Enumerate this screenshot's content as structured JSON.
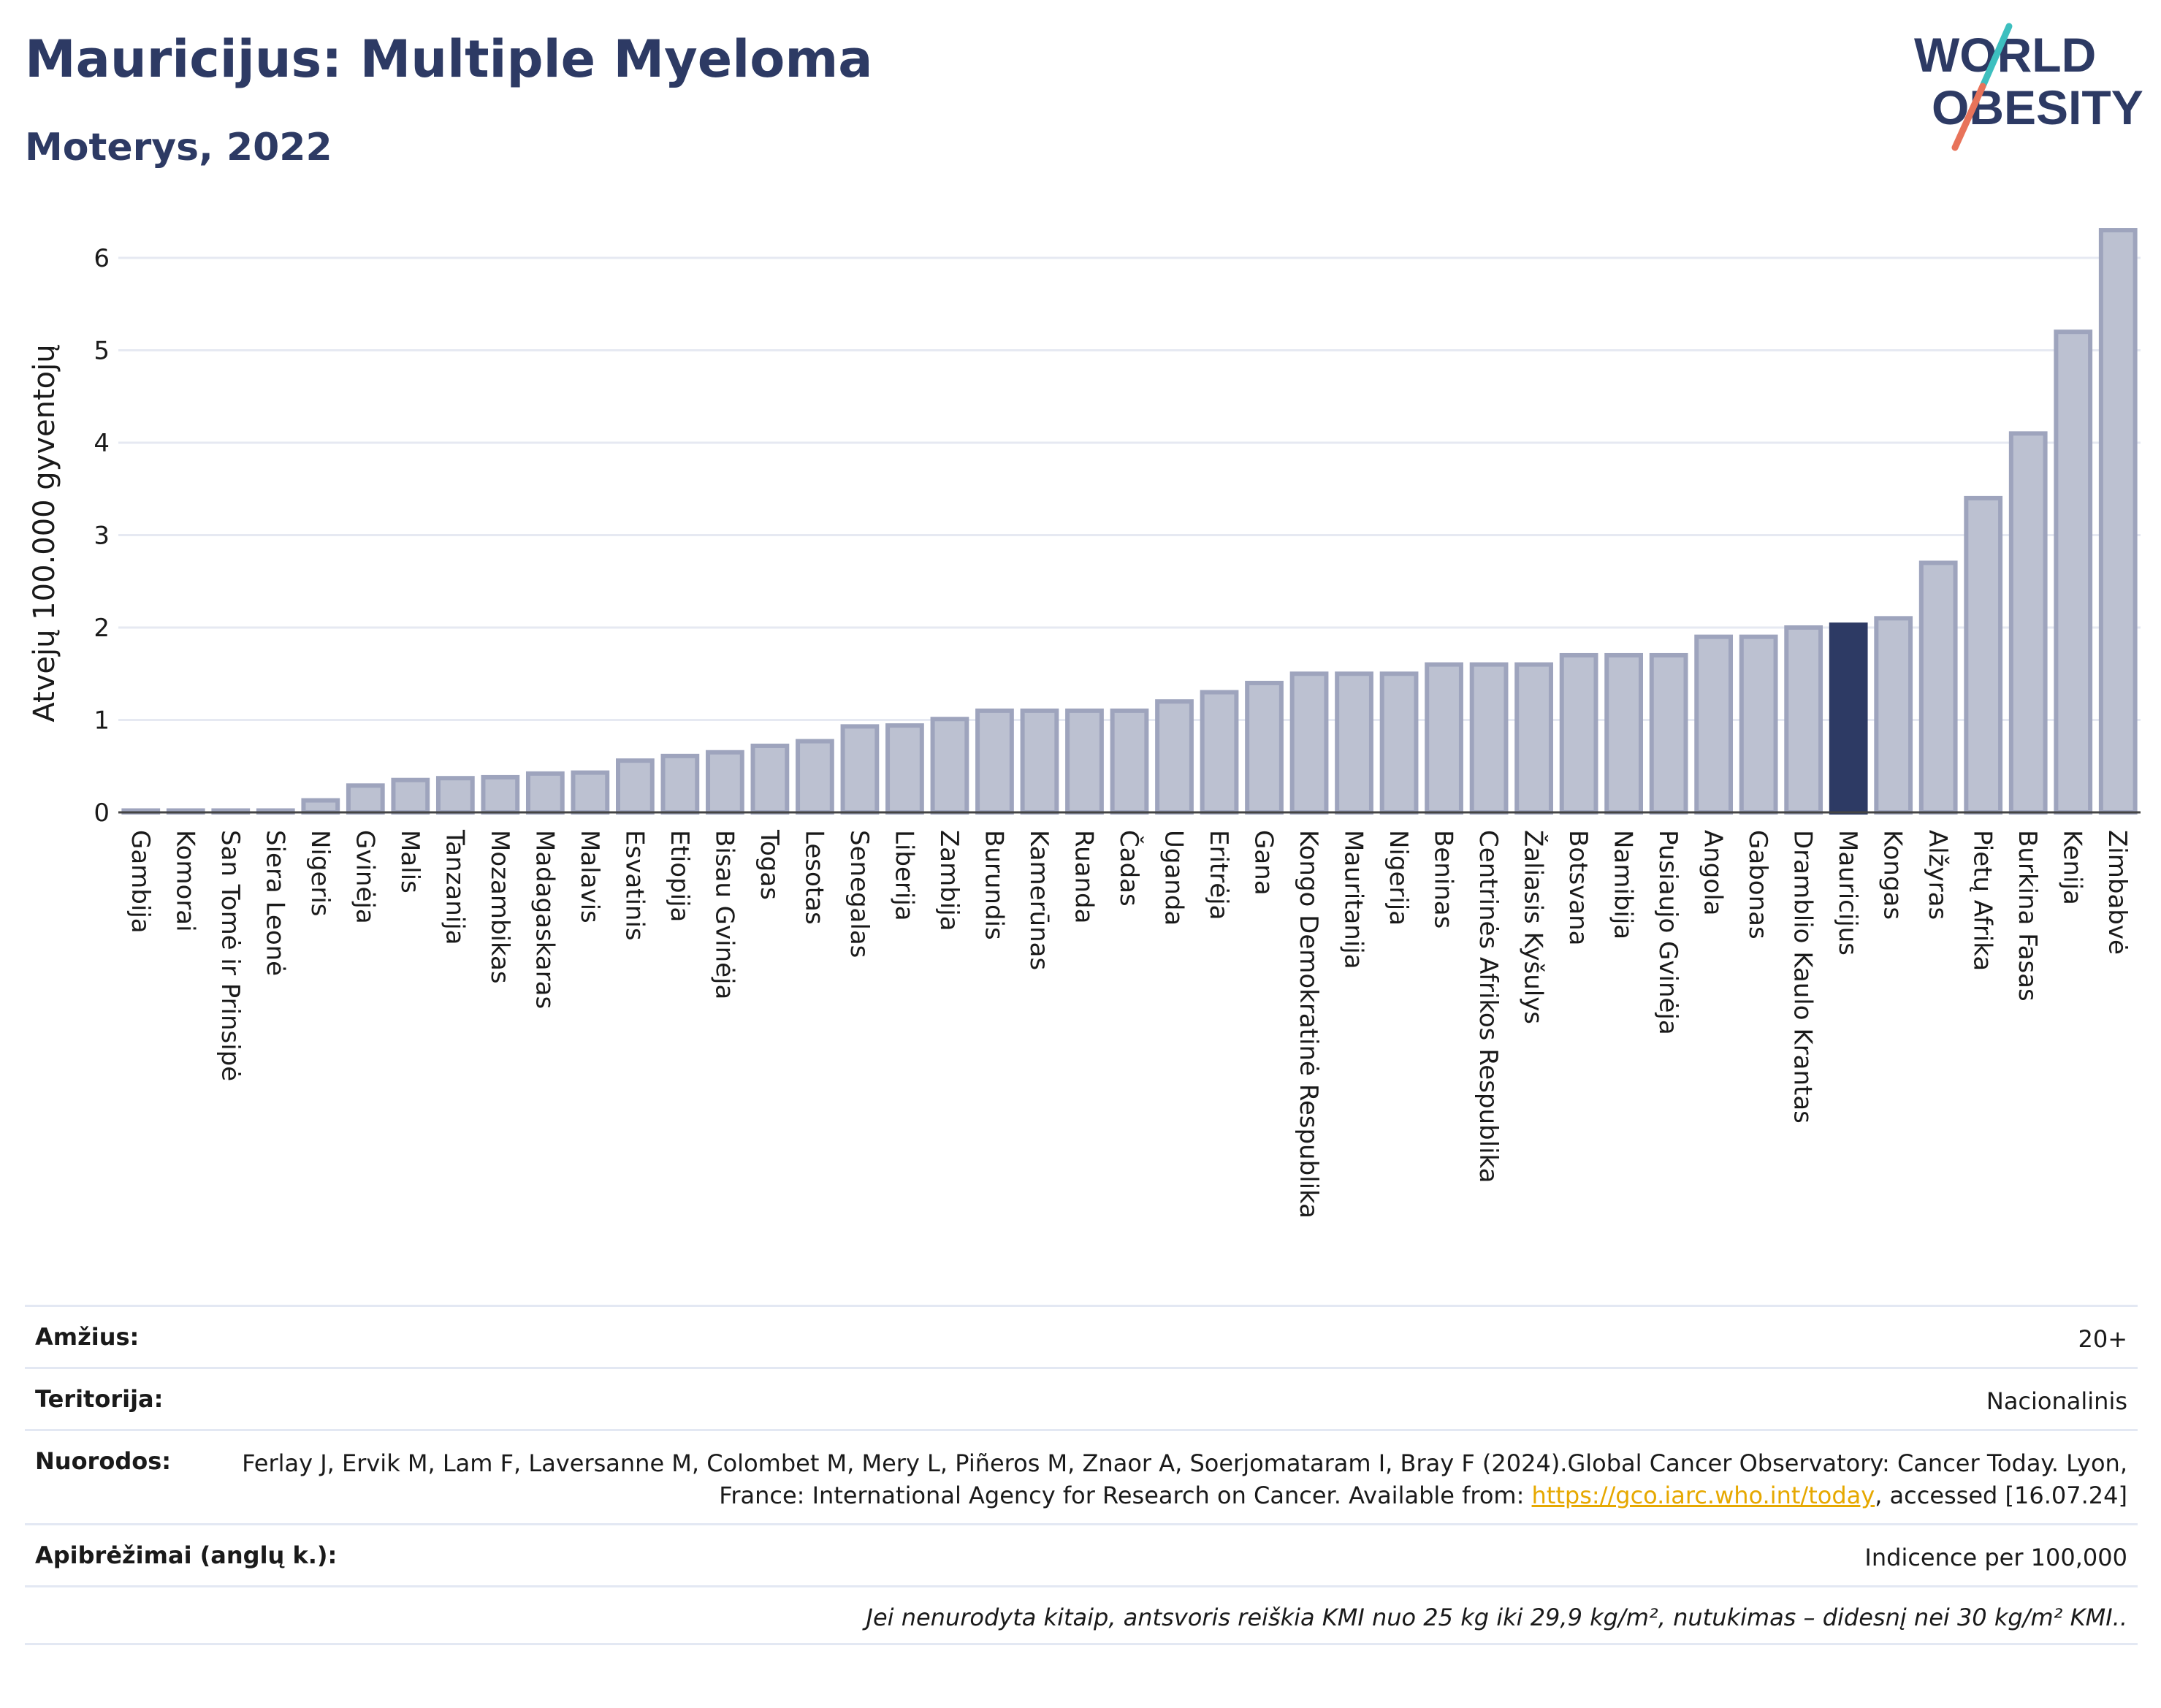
{
  "header": {
    "title": "Mauricijus: Multiple Myeloma",
    "subtitle": "Moterys, 2022"
  },
  "logo": {
    "line1": "WORLD",
    "line2": "OBESITY"
  },
  "colors": {
    "title": "#2d3a64",
    "bar_fill": "#bcc1d1",
    "bar_stroke": "#9ea4bd",
    "highlight_fill": "#2d3a64",
    "grid": "#e6e9f2",
    "logo_text": "#2d3a64",
    "logo_teal": "#3dbfbf",
    "logo_red": "#e8735a",
    "link": "#e6a800"
  },
  "chart_data": {
    "type": "bar",
    "title": "Mauricijus: Multiple Myeloma",
    "subtitle": "Moterys, 2022",
    "xlabel": "",
    "ylabel": "Atvejų 100.000 gyventojų",
    "ylim": [
      0,
      6.6
    ],
    "yticks": [
      0,
      1,
      2,
      3,
      4,
      5,
      6
    ],
    "grid": true,
    "highlight": "Mauricijus",
    "categories": [
      "Gambija",
      "Komorai",
      "San Tomė ir Prinsipė",
      "Siera Leonė",
      "Nigeris",
      "Gvinėja",
      "Malis",
      "Tanzanija",
      "Mozambikas",
      "Madagaskaras",
      "Malavis",
      "Esvatinis",
      "Etiopija",
      "Bisau Gvinėja",
      "Togas",
      "Lesotas",
      "Senegalas",
      "Liberija",
      "Zambija",
      "Burundis",
      "Kamerūnas",
      "Ruanda",
      "Čadas",
      "Uganda",
      "Eritrėja",
      "Gana",
      "Kongo Demokratinė Respublika",
      "Mauritanija",
      "Nigerija",
      "Beninas",
      "Centrinės Afrikos Respublika",
      "Žaliasis Kyšulys",
      "Botsvana",
      "Namibija",
      "Pusiaujo Gvinėja",
      "Angola",
      "Gabonas",
      "Dramblio Kaulo Krantas",
      "Mauricijus",
      "Kongas",
      "Alžyras",
      "Pietų Afrika",
      "Burkina Fasas",
      "Kenija",
      "Zimbabvė"
    ],
    "values": [
      0.02,
      0.02,
      0.02,
      0.02,
      0.13,
      0.29,
      0.35,
      0.37,
      0.38,
      0.42,
      0.43,
      0.56,
      0.61,
      0.65,
      0.72,
      0.77,
      0.93,
      0.94,
      1.01,
      1.1,
      1.1,
      1.1,
      1.1,
      1.2,
      1.3,
      1.4,
      1.5,
      1.5,
      1.5,
      1.6,
      1.6,
      1.6,
      1.7,
      1.7,
      1.7,
      1.9,
      1.9,
      2.0,
      2.03,
      2.1,
      2.7,
      3.4,
      4.1,
      5.2,
      6.3
    ]
  },
  "info": {
    "rows": [
      {
        "label": "Amžius:",
        "value": "20+"
      },
      {
        "label": "Teritorija:",
        "value": "Nacionalinis"
      },
      {
        "label": "Nuorodos:",
        "value_before": "Ferlay J, Ervik M, Lam F, Laversanne M, Colombet M, Mery L, Piñeros M, Znaor A, Soerjomataram I, Bray F (2024).Global Cancer Observatory: Cancer Today. Lyon, France: International Agency for Research on Cancer. Available from: ",
        "link": "https://gco.iarc.who.int/today",
        "value_after": ", accessed [16.07.24]"
      },
      {
        "label": "Apibrėžimai (anglų k.):",
        "value": "Indicence per 100,000"
      }
    ],
    "note": "Jei nenurodyta kitaip, antsvoris reiškia KMI nuo 25 kg iki 29,9 kg/m², nutukimas – didesnį nei 30 kg/m² KMI.."
  }
}
